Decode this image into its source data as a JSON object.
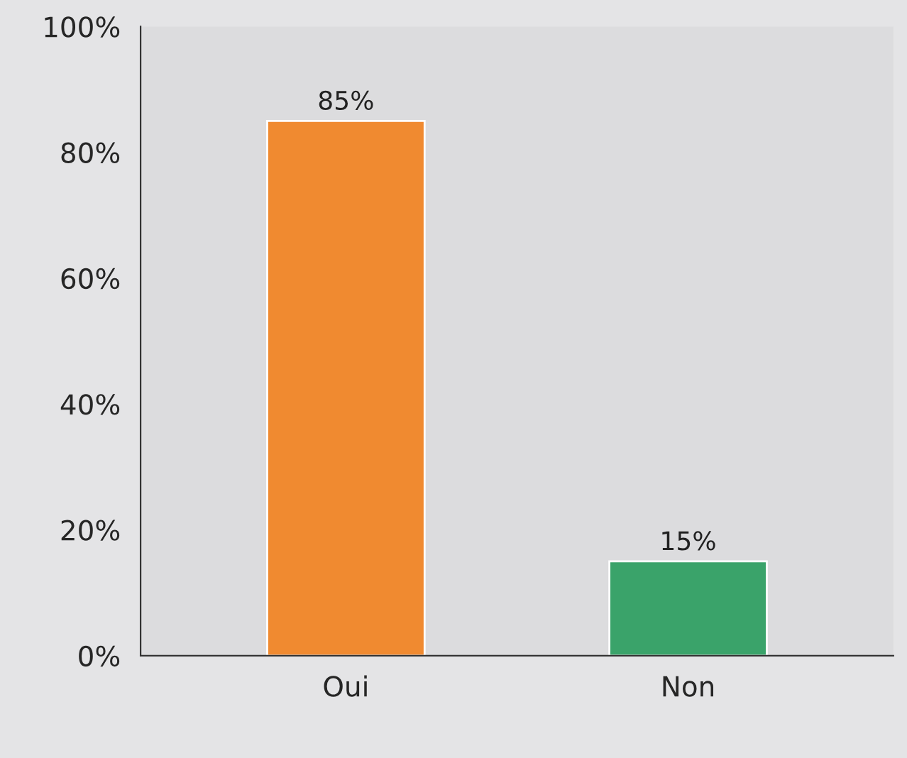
{
  "chart_data": {
    "type": "bar",
    "categories": [
      "Oui",
      "Non"
    ],
    "values": [
      85,
      15
    ],
    "colors": [
      "#f08a30",
      "#3aa36a"
    ],
    "value_labels": [
      "85%",
      "15%"
    ],
    "ylim": [
      0,
      100
    ],
    "yticks": [
      {
        "value": 0,
        "label": "0%"
      },
      {
        "value": 20,
        "label": "20%"
      },
      {
        "value": 40,
        "label": "40%"
      },
      {
        "value": 60,
        "label": "60%"
      },
      {
        "value": 80,
        "label": "80%"
      },
      {
        "value": 100,
        "label": "100%"
      }
    ],
    "grid": false,
    "legend": false
  }
}
